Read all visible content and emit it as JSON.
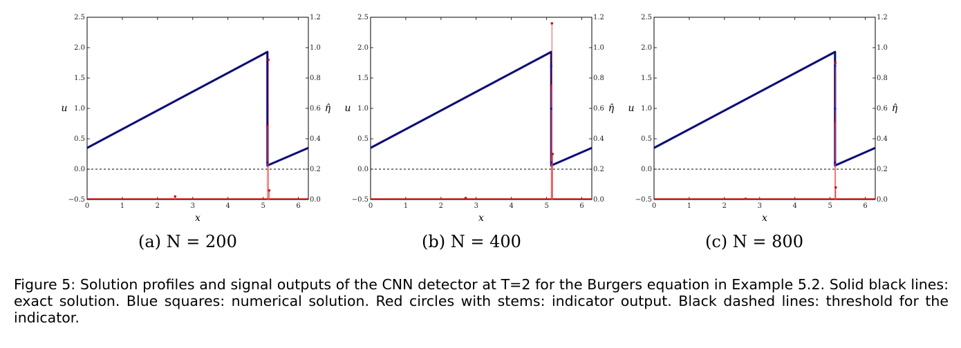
{
  "figure": {
    "caption": "Figure 5: Solution profiles and signal outputs of the CNN detector at T=2 for the Burgers equation in Example 5.2. Solid black lines: exact solution. Blue squares: numerical solution. Red circles with stems: indicator output. Black dashed lines: threshold for the indicator."
  },
  "subcaptions": [
    "(a) N = 200",
    "(b) N = 400",
    "(c) N = 800"
  ],
  "chart_data": [
    {
      "type": "line",
      "xlabel": "x",
      "ylabel": "u",
      "y2label": "η̂",
      "xlim": [
        0,
        6.283
      ],
      "ylim": [
        -0.5,
        2.5
      ],
      "y2lim": [
        0.0,
        1.2
      ],
      "xticks": [
        "0",
        "1",
        "2",
        "3",
        "4",
        "5",
        "6"
      ],
      "yticks": [
        "−0.5",
        "0.0",
        "0.5",
        "1.0",
        "1.5",
        "2.0",
        "2.5"
      ],
      "y2ticks": [
        "0.0",
        "0.2",
        "0.4",
        "0.6",
        "0.8",
        "1.0",
        "1.2"
      ],
      "threshold": 0.2,
      "shock": {
        "x": 5.12,
        "u_left": 1.93,
        "u_right": 0.06
      },
      "solution": {
        "x": [
          0,
          5.12,
          5.12,
          6.283
        ],
        "u": [
          0.35,
          1.93,
          0.06,
          0.35
        ]
      },
      "indicator": {
        "x": [
          0.0,
          1.0,
          2.0,
          2.5,
          3.0,
          4.0,
          5.0,
          5.12,
          5.15,
          5.17,
          5.2,
          6.0,
          6.283
        ],
        "eta": [
          0.0,
          0.0,
          0.0,
          0.02,
          0.0,
          0.0,
          0.0,
          0.48,
          0.92,
          0.06,
          0.0,
          0.0,
          0.0
        ]
      }
    },
    {
      "type": "line",
      "xlabel": "x",
      "ylabel": "u",
      "y2label": "η̂",
      "xlim": [
        0,
        6.283
      ],
      "ylim": [
        -0.5,
        2.5
      ],
      "y2lim": [
        0.0,
        1.2
      ],
      "xticks": [
        "0",
        "1",
        "2",
        "3",
        "4",
        "5",
        "6"
      ],
      "yticks": [
        "−0.5",
        "0.0",
        "0.5",
        "1.0",
        "1.5",
        "2.0",
        "2.5"
      ],
      "y2ticks": [
        "0.0",
        "0.2",
        "0.4",
        "0.6",
        "0.8",
        "1.0",
        "1.2"
      ],
      "threshold": 0.2,
      "shock": {
        "x": 5.13,
        "u_left": 1.93,
        "u_right": 0.06
      },
      "solution": {
        "x": [
          0,
          5.13,
          5.13,
          6.283
        ],
        "u": [
          0.35,
          1.93,
          0.06,
          0.35
        ]
      },
      "indicator": {
        "x": [
          0.0,
          1.0,
          2.0,
          2.7,
          3.0,
          4.0,
          5.0,
          5.13,
          5.15,
          5.17,
          5.2,
          6.0,
          6.283
        ],
        "eta": [
          0.0,
          0.0,
          0.0,
          0.01,
          0.0,
          0.0,
          0.0,
          0.75,
          1.16,
          0.3,
          0.0,
          0.0,
          0.0
        ]
      }
    },
    {
      "type": "line",
      "xlabel": "x",
      "ylabel": "u",
      "y2label": "η̂",
      "xlim": [
        0,
        6.283
      ],
      "ylim": [
        -0.5,
        2.5
      ],
      "y2lim": [
        0.0,
        1.2
      ],
      "xticks": [
        "0",
        "1",
        "2",
        "3",
        "4",
        "5",
        "6"
      ],
      "yticks": [
        "−0.5",
        "0.0",
        "0.5",
        "1.0",
        "1.5",
        "2.0",
        "2.5"
      ],
      "y2ticks": [
        "0.0",
        "0.2",
        "0.4",
        "0.6",
        "0.8",
        "1.0",
        "1.2"
      ],
      "threshold": 0.2,
      "shock": {
        "x": 5.14,
        "u_left": 1.93,
        "u_right": 0.06
      },
      "solution": {
        "x": [
          0,
          5.14,
          5.14,
          6.283
        ],
        "u": [
          0.35,
          1.93,
          0.06,
          0.35
        ]
      },
      "indicator": {
        "x": [
          0.0,
          1.0,
          2.0,
          2.6,
          3.0,
          4.0,
          5.0,
          5.14,
          5.15,
          5.16,
          5.2,
          6.0,
          6.283
        ],
        "eta": [
          0.0,
          0.0,
          0.0,
          0.005,
          0.0,
          0.0,
          0.0,
          0.5,
          0.9,
          0.08,
          0.0,
          0.0,
          0.0
        ]
      }
    }
  ]
}
